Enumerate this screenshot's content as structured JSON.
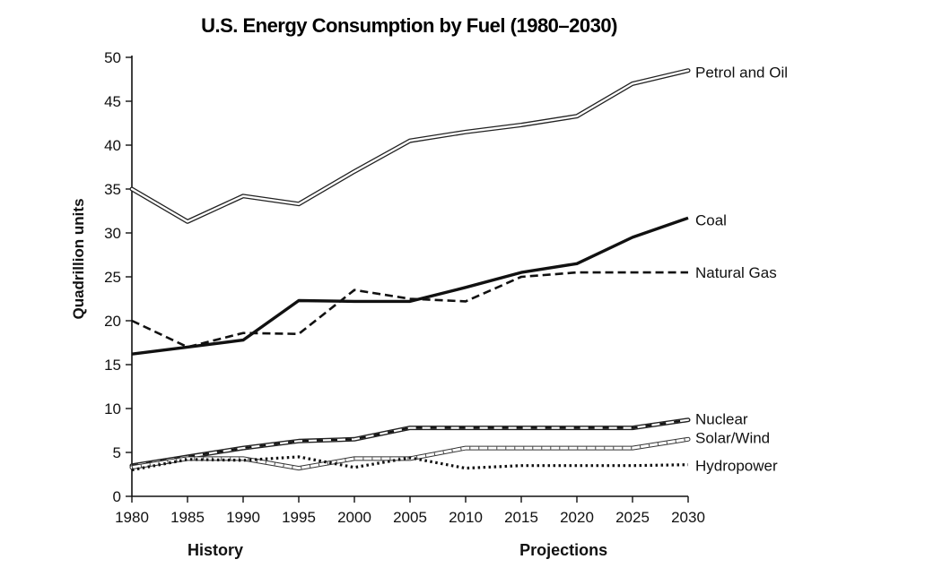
{
  "chart_data": {
    "type": "line",
    "title": "U.S. Energy Consumption by Fuel (1980–2030)",
    "xlabel": "",
    "ylabel": "Quadrillion units",
    "x": [
      1980,
      1985,
      1990,
      1995,
      2000,
      2005,
      2010,
      2015,
      2020,
      2025,
      2030
    ],
    "ylim": [
      0,
      50
    ],
    "yticks": [
      0,
      5,
      10,
      15,
      20,
      25,
      30,
      35,
      40,
      45,
      50
    ],
    "xticks": [
      1980,
      1985,
      1990,
      1995,
      2000,
      2005,
      2010,
      2015,
      2020,
      2025,
      2030
    ],
    "section_labels": [
      "History",
      "Projections"
    ],
    "grid": false,
    "series": [
      {
        "name": "Petrol and Oil",
        "style": "double",
        "values": [
          35,
          31.3,
          34.2,
          33.3,
          37,
          40.5,
          41.5,
          42.3,
          43.3,
          47,
          48.5
        ]
      },
      {
        "name": "Coal",
        "style": "solid",
        "values": [
          16.2,
          17,
          17.8,
          22.3,
          22.2,
          22.2,
          23.8,
          25.5,
          26.5,
          29.5,
          31.7
        ]
      },
      {
        "name": "Natural Gas",
        "style": "dashed",
        "values": [
          20,
          17,
          18.6,
          18.5,
          23.5,
          22.5,
          22.2,
          25,
          25.5,
          25.5,
          25.5
        ]
      },
      {
        "name": "Nuclear",
        "style": "dashed-double",
        "values": [
          3.5,
          4.5,
          5.5,
          6.3,
          6.5,
          7.8,
          7.8,
          7.8,
          7.8,
          7.8,
          8.7
        ]
      },
      {
        "name": "Solar/Wind",
        "style": "hatched",
        "values": [
          3.3,
          4.3,
          4.3,
          3.2,
          4.3,
          4.3,
          5.5,
          5.5,
          5.5,
          5.5,
          6.5
        ]
      },
      {
        "name": "Hydropower",
        "style": "dotted",
        "values": [
          3,
          4.2,
          4.1,
          4.5,
          3.3,
          4.4,
          3.2,
          3.5,
          3.5,
          3.5,
          3.6
        ]
      }
    ]
  }
}
